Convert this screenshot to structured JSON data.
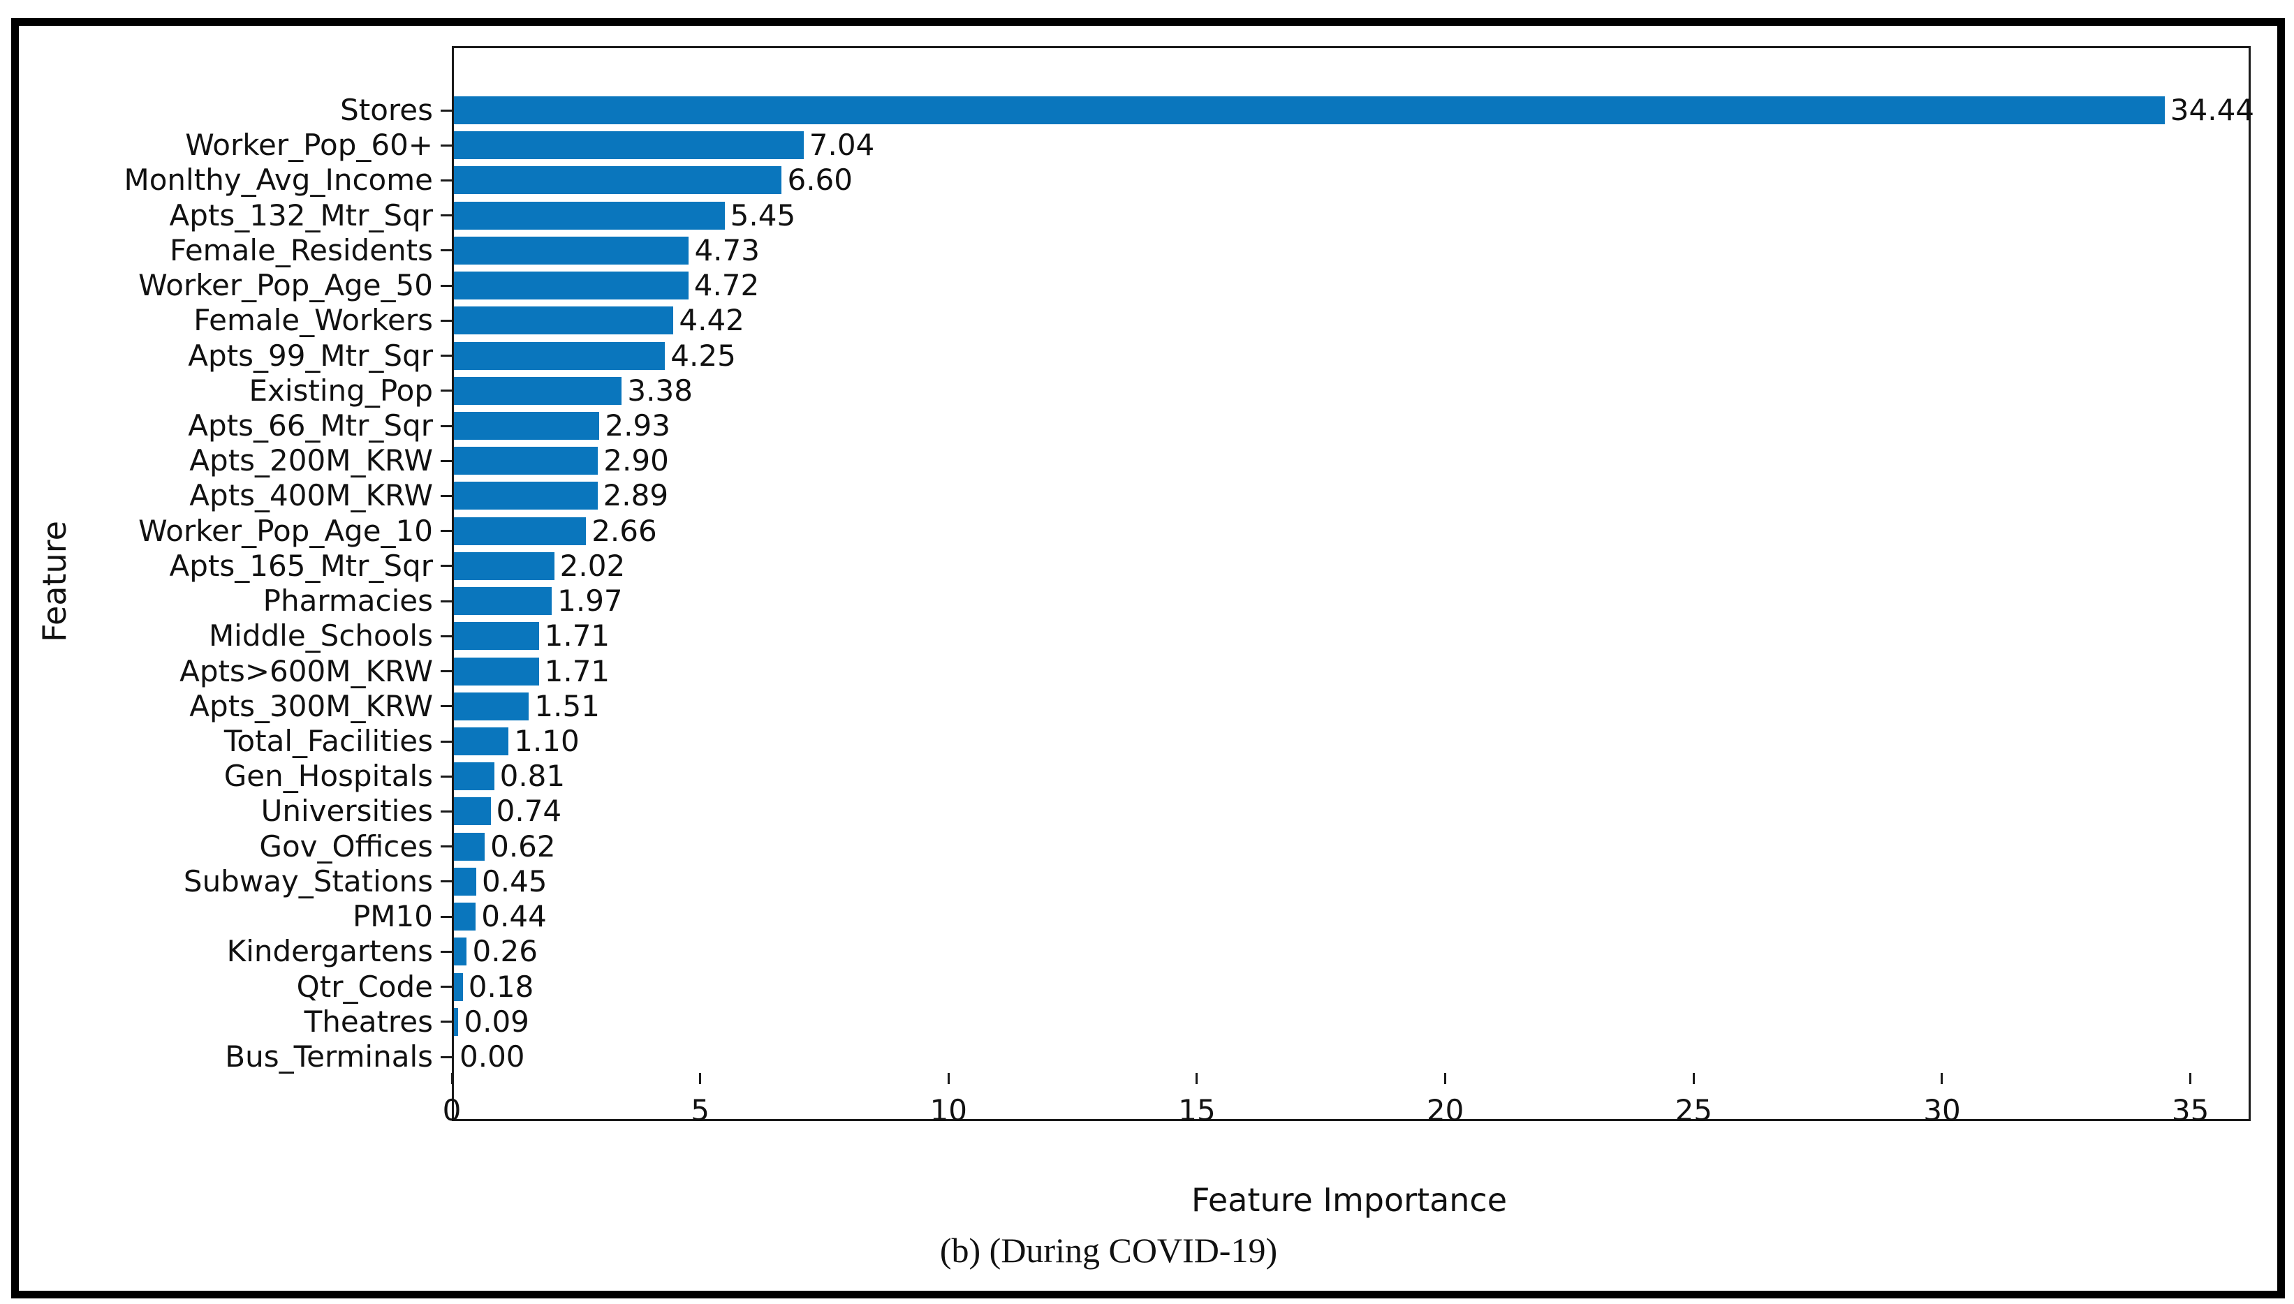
{
  "chart_data": {
    "type": "bar",
    "orientation": "horizontal",
    "categories": [
      "Stores",
      "Worker_Pop_60+",
      "Monlthy_Avg_Income",
      "Apts_132_Mtr_Sqr",
      "Female_Residents",
      "Worker_Pop_Age_50",
      "Female_Workers",
      "Apts_99_Mtr_Sqr",
      "Existing_Pop",
      "Apts_66_Mtr_Sqr",
      "Apts_200M_KRW",
      "Apts_400M_KRW",
      "Worker_Pop_Age_10",
      "Apts_165_Mtr_Sqr",
      "Pharmacies",
      "Middle_Schools",
      "Apts>600M_KRW",
      "Apts_300M_KRW",
      "Total_Facilities",
      "Gen_Hospitals",
      "Universities",
      "Gov_Offices",
      "Subway_Stations",
      "PM10",
      "Kindergartens",
      "Qtr_Code",
      "Theatres",
      "Bus_Terminals"
    ],
    "values": [
      34.44,
      7.04,
      6.6,
      5.45,
      4.73,
      4.72,
      4.42,
      4.25,
      3.38,
      2.93,
      2.9,
      2.89,
      2.66,
      2.02,
      1.97,
      1.71,
      1.71,
      1.51,
      1.1,
      0.81,
      0.74,
      0.62,
      0.45,
      0.44,
      0.26,
      0.18,
      0.09,
      0.0
    ],
    "value_labels": [
      "34.44",
      "7.04",
      "6.60",
      "5.45",
      "4.73",
      "4.72",
      "4.42",
      "4.25",
      "3.38",
      "2.93",
      "2.90",
      "2.89",
      "2.66",
      "2.02",
      "1.97",
      "1.71",
      "1.71",
      "1.51",
      "1.10",
      "0.81",
      "0.74",
      "0.62",
      "0.45",
      "0.44",
      "0.26",
      "0.18",
      "0.09",
      "0.00"
    ],
    "xlabel": "Feature Importance",
    "ylabel": "Feature",
    "xticks": [
      "0",
      "5",
      "10",
      "15",
      "20",
      "25",
      "30",
      "35"
    ],
    "xtick_values": [
      0,
      5,
      10,
      15,
      20,
      25,
      30,
      35
    ],
    "xlim": [
      0,
      36.13
    ],
    "bar_color": "#0a76bd",
    "grid": false,
    "legend": null,
    "caption": "(b) (During COVID-19)"
  }
}
